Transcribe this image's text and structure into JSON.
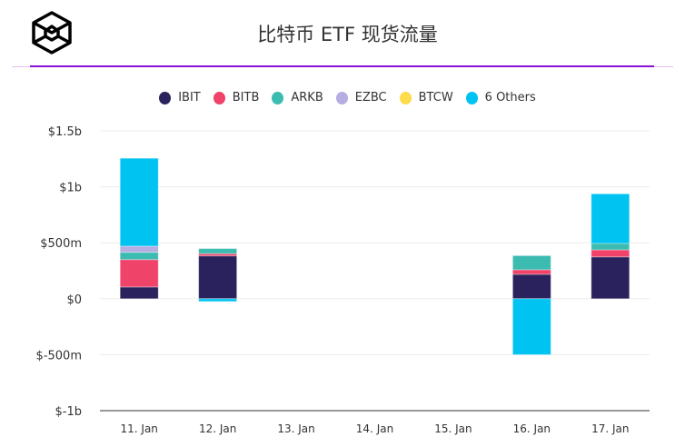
{
  "title": "比特币 ETF 现货流量",
  "chart_data": {
    "type": "bar",
    "stacked": true,
    "title": "比特币 ETF 现货流量",
    "categories": [
      "11. Jan",
      "12. Jan",
      "13. Jan",
      "14. Jan",
      "15. Jan",
      "16. Jan",
      "17. Jan"
    ],
    "ylim": [
      -1000,
      1500
    ],
    "yticks": [
      {
        "v": 1500,
        "label": "$1.5b"
      },
      {
        "v": 1000,
        "label": "$1b"
      },
      {
        "v": 500,
        "label": "$500m"
      },
      {
        "v": 0,
        "label": "$0"
      },
      {
        "v": -500,
        "label": "$-500m"
      },
      {
        "v": -1000,
        "label": "$-1b"
      }
    ],
    "unit": "USD millions",
    "grid": true,
    "legend_position": "top",
    "series": [
      {
        "name": "IBIT",
        "color": "#2a225c",
        "values": [
          105,
          383,
          0,
          0,
          0,
          218,
          374
        ]
      },
      {
        "name": "BITB",
        "color": "#f0436a",
        "values": [
          245,
          20,
          0,
          0,
          0,
          41,
          63
        ]
      },
      {
        "name": "ARKB",
        "color": "#3cbcb0",
        "values": [
          65,
          45,
          0,
          0,
          0,
          126,
          57
        ]
      },
      {
        "name": "EZBC",
        "color": "#b6ade2",
        "values": [
          55,
          0,
          0,
          0,
          0,
          0,
          0
        ]
      },
      {
        "name": "BTCW",
        "color": "#fcdc4a",
        "values": [
          0,
          0,
          0,
          0,
          0,
          0,
          0
        ]
      },
      {
        "name": "6 Others",
        "color": "#00c3f2",
        "values": [
          785,
          -25,
          0,
          0,
          0,
          -500,
          443
        ]
      }
    ]
  }
}
